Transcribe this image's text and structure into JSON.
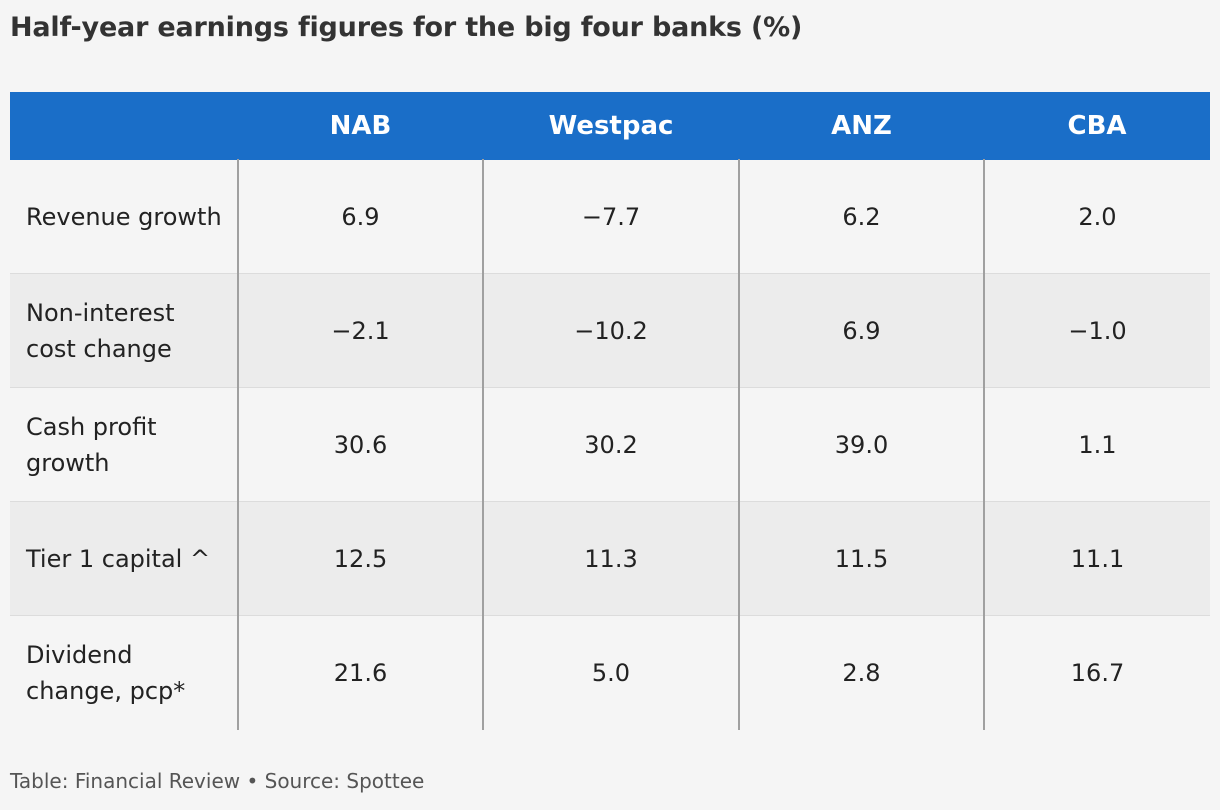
{
  "title": "Half-year earnings figures for the big four banks (%)",
  "chart_data": {
    "type": "table",
    "title": "Half-year earnings figures for the big four banks (%)",
    "columns": [
      "",
      "NAB",
      "Westpac",
      "ANZ",
      "CBA"
    ],
    "rows": [
      {
        "label": "Revenue growth",
        "values": [
          "6.9",
          "−7.7",
          "6.2",
          "2.0"
        ]
      },
      {
        "label": "Non-interest cost change",
        "values": [
          "−2.1",
          "−10.2",
          "6.9",
          "−1.0"
        ]
      },
      {
        "label": "Cash profit growth",
        "values": [
          "30.6",
          "30.2",
          "39.0",
          "1.1"
        ]
      },
      {
        "label": "Tier 1 capital ^",
        "values": [
          "12.5",
          "11.3",
          "11.5",
          "11.1"
        ]
      },
      {
        "label": "Dividend change, pcp*",
        "values": [
          "21.6",
          "5.0",
          "2.8",
          "16.7"
        ]
      }
    ]
  },
  "footer": "Table: Financial Review • Source: Spottee",
  "colors": {
    "header_bg": "#1a6ec8",
    "header_text": "#ffffff",
    "background": "#f5f5f5",
    "row_alt": "#ececec"
  }
}
